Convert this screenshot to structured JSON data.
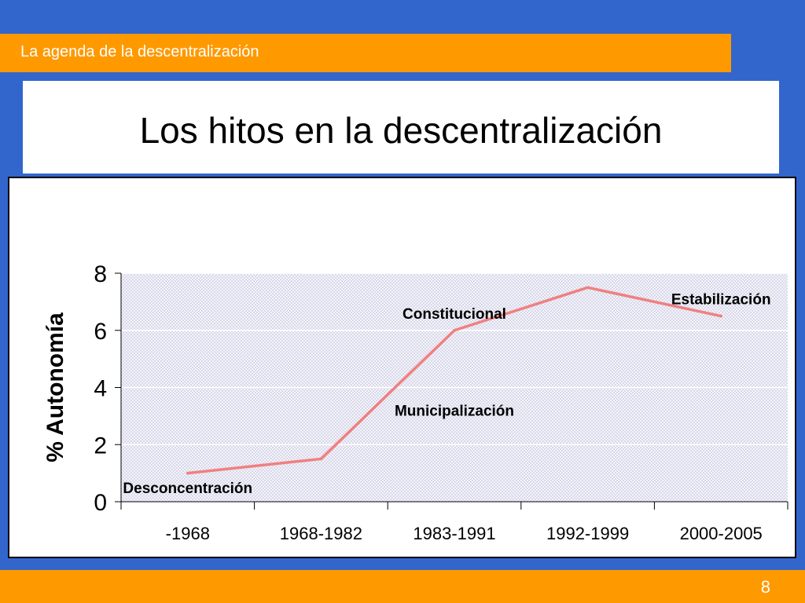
{
  "header": {
    "section_title": "La agenda de la descentralización"
  },
  "slide": {
    "title": "Los hitos en la descentralización",
    "page_number": "8"
  },
  "colors": {
    "background": "#3366cc",
    "accent": "#ff9900",
    "series": "#f08080",
    "plot_fill": "#e8e8f4"
  },
  "chart_data": {
    "type": "line",
    "title": "",
    "xlabel": "",
    "ylabel": "% Autonomía",
    "categories": [
      "-1968",
      "1968-1982",
      "1983-1991",
      "1992-1999",
      "2000-2005"
    ],
    "series": [
      {
        "values": [
          1.0,
          1.5,
          6.0,
          7.5,
          6.5
        ]
      }
    ],
    "ylim": [
      0,
      8
    ],
    "yticks": [
      0,
      2,
      4,
      6,
      8
    ],
    "grid": true,
    "annotations": [
      {
        "text": "Desconcentración",
        "category": "-1968",
        "y": 0.5
      },
      {
        "text": "Municipalización",
        "category": "1983-1991",
        "y": 3.2
      },
      {
        "text": "Constitucional",
        "category": "1983-1991",
        "y": 6.6
      },
      {
        "text": "Estabilización",
        "category": "2000-2005",
        "y": 7.1
      }
    ]
  }
}
